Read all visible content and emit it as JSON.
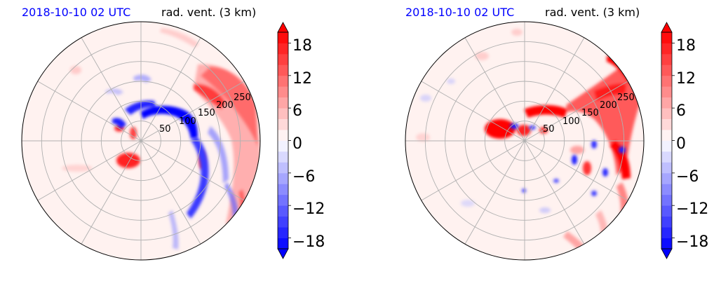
{
  "panels": [
    {
      "title_left": "2018-10-10 02 UTC",
      "title_right": "rad. vent. (3 km)",
      "ring_labels": [
        "50",
        "100",
        "150",
        "200",
        "250"
      ],
      "colorbar": {
        "ticks": [
          18,
          12,
          6,
          0,
          -6,
          -12,
          -18
        ],
        "tick_labels": [
          "18",
          "12",
          "6",
          "0",
          "−6",
          "−12",
          "−18"
        ],
        "vmin": -20,
        "vmax": 20
      }
    },
    {
      "title_left": "2018-10-10 02 UTC",
      "title_right": "rad. vent. (3 km)",
      "ring_labels": [
        "50",
        "100",
        "150",
        "200",
        "250"
      ],
      "colorbar": {
        "ticks": [
          18,
          12,
          6,
          0,
          -6,
          -12,
          -18
        ],
        "tick_labels": [
          "18",
          "12",
          "6",
          "0",
          "−6",
          "−12",
          "−18"
        ],
        "vmin": -20,
        "vmax": 20
      }
    }
  ],
  "chart_data": [
    {
      "type": "heatmap",
      "projection": "polar",
      "title": "2018-10-10 02 UTC  rad. vent. (3 km)",
      "radial_ticks": [
        50,
        100,
        150,
        200,
        250
      ],
      "angular_gridlines_deg": [
        0,
        30,
        60,
        90,
        120,
        150,
        180,
        210,
        240,
        270,
        300,
        330
      ],
      "colorbar": {
        "ticks": [
          -18,
          -12,
          -6,
          0,
          6,
          12,
          18
        ],
        "range": [
          -20,
          20
        ],
        "extend": "both",
        "colormap": "bwr"
      },
      "colors": {
        "positive": "#ff0000",
        "negative": "#0000ff",
        "neutral": "#ffffff"
      }
    },
    {
      "type": "heatmap",
      "projection": "polar",
      "title": "2018-10-10 02 UTC  rad. vent. (3 km)",
      "radial_ticks": [
        50,
        100,
        150,
        200,
        250
      ],
      "angular_gridlines_deg": [
        0,
        30,
        60,
        90,
        120,
        150,
        180,
        210,
        240,
        270,
        300,
        330
      ],
      "colorbar": {
        "ticks": [
          -18,
          -12,
          -6,
          0,
          6,
          12,
          18
        ],
        "range": [
          -20,
          20
        ],
        "extend": "both",
        "colormap": "bwr"
      },
      "colors": {
        "positive": "#ff0000",
        "negative": "#0000ff",
        "neutral": "#ffffff"
      }
    }
  ]
}
